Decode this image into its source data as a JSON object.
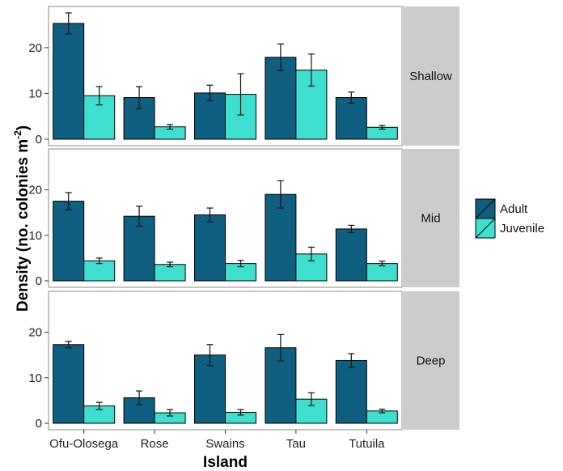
{
  "chart_data": {
    "type": "bar",
    "categories": [
      "Ofu-Olosega",
      "Rose",
      "Swains",
      "Tau",
      "Tutuila"
    ],
    "xlabel": "Island",
    "ylabel_main": "Density",
    "ylabel_unit": "(no. colonies m",
    "ylabel_exp": "-2",
    "ylabel_close": ")",
    "ylim": [
      0,
      29
    ],
    "yticks": [
      0,
      10,
      20
    ],
    "legend": {
      "position": "right",
      "entries": [
        {
          "name": "Adult",
          "color": "#0f5f80"
        },
        {
          "name": "Juvenile",
          "color": "#3fdfd0"
        }
      ]
    },
    "panels": [
      {
        "label": "Shallow",
        "series": [
          {
            "name": "Adult",
            "values": [
              25.3,
              9.1,
              10.1,
              17.9,
              9.1
            ],
            "errors": [
              2.3,
              2.4,
              1.7,
              2.9,
              1.2
            ]
          },
          {
            "name": "Juvenile",
            "values": [
              9.5,
              2.7,
              9.8,
              15.1,
              2.6
            ],
            "errors": [
              2.0,
              0.5,
              4.5,
              3.5,
              0.4
            ]
          }
        ]
      },
      {
        "label": "Mid",
        "series": [
          {
            "name": "Adult",
            "values": [
              17.5,
              14.2,
              14.5,
              19.0,
              11.4
            ],
            "errors": [
              1.9,
              2.2,
              1.5,
              3.0,
              0.8
            ]
          },
          {
            "name": "Juvenile",
            "values": [
              4.4,
              3.6,
              3.8,
              5.9,
              3.8
            ],
            "errors": [
              0.6,
              0.5,
              0.7,
              1.5,
              0.5
            ]
          }
        ]
      },
      {
        "label": "Deep",
        "series": [
          {
            "name": "Adult",
            "values": [
              17.3,
              5.6,
              15.0,
              16.6,
              13.8
            ],
            "errors": [
              0.7,
              1.5,
              2.3,
              2.9,
              1.5
            ]
          },
          {
            "name": "Juvenile",
            "values": [
              3.8,
              2.3,
              2.4,
              5.3,
              2.7
            ],
            "errors": [
              0.8,
              0.7,
              0.6,
              1.4,
              0.4
            ]
          }
        ]
      }
    ],
    "grid": false
  }
}
